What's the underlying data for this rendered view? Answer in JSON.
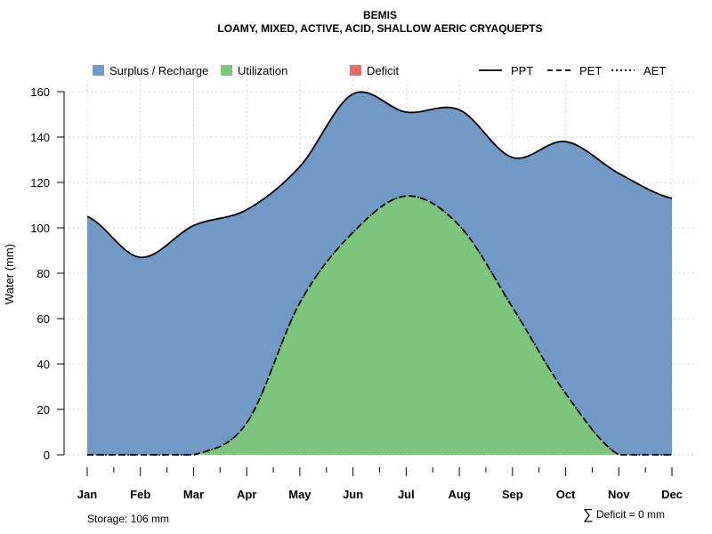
{
  "chart_data": {
    "type": "area",
    "title": "BEMIS",
    "subtitle": "LOAMY, MIXED, ACTIVE, ACID, SHALLOW AERIC CRYAQUEPTS",
    "ylabel": "Water (mm)",
    "xlabel": "",
    "ylim": [
      0,
      160
    ],
    "yticks": [
      0,
      20,
      40,
      60,
      80,
      100,
      120,
      140,
      160
    ],
    "categories": [
      "Jan",
      "Feb",
      "Mar",
      "Apr",
      "May",
      "Jun",
      "Jul",
      "Aug",
      "Sep",
      "Oct",
      "Nov",
      "Dec"
    ],
    "series": [
      {
        "name": "PPT",
        "line_style": "solid",
        "values": [
          105,
          87,
          101,
          108,
          127,
          159,
          151,
          152,
          131,
          138,
          124,
          113
        ]
      },
      {
        "name": "PET",
        "line_style": "dashed",
        "values": [
          0,
          0,
          0,
          14,
          67,
          98,
          114,
          101,
          65,
          27,
          0,
          0
        ]
      },
      {
        "name": "AET",
        "line_style": "dotted",
        "values": [
          0,
          0,
          0,
          14,
          67,
          98,
          114,
          101,
          65,
          27,
          0,
          0
        ]
      }
    ],
    "legend": [
      {
        "label": "Surplus / Recharge",
        "kind": "fill",
        "color": "#7399C6"
      },
      {
        "label": "Utilization",
        "kind": "fill",
        "color": "#7DC47D"
      },
      {
        "label": "Deficit",
        "kind": "fill",
        "color": "#E86B6B"
      },
      {
        "label": "PPT",
        "kind": "line",
        "dash": "solid"
      },
      {
        "label": "PET",
        "kind": "line",
        "dash": "dashed"
      },
      {
        "label": "AET",
        "kind": "line",
        "dash": "dotted"
      }
    ],
    "legend_position": "top",
    "grid": true,
    "colors": {
      "surplus": "#7399C6",
      "utilization": "#7DC47D",
      "deficit": "#E86B6B",
      "grid": "#d3d3d3"
    }
  },
  "footer": {
    "storage": "Storage: 106 mm",
    "deficit_symbol": "∑",
    "deficit": "Deficit = 0 mm"
  }
}
